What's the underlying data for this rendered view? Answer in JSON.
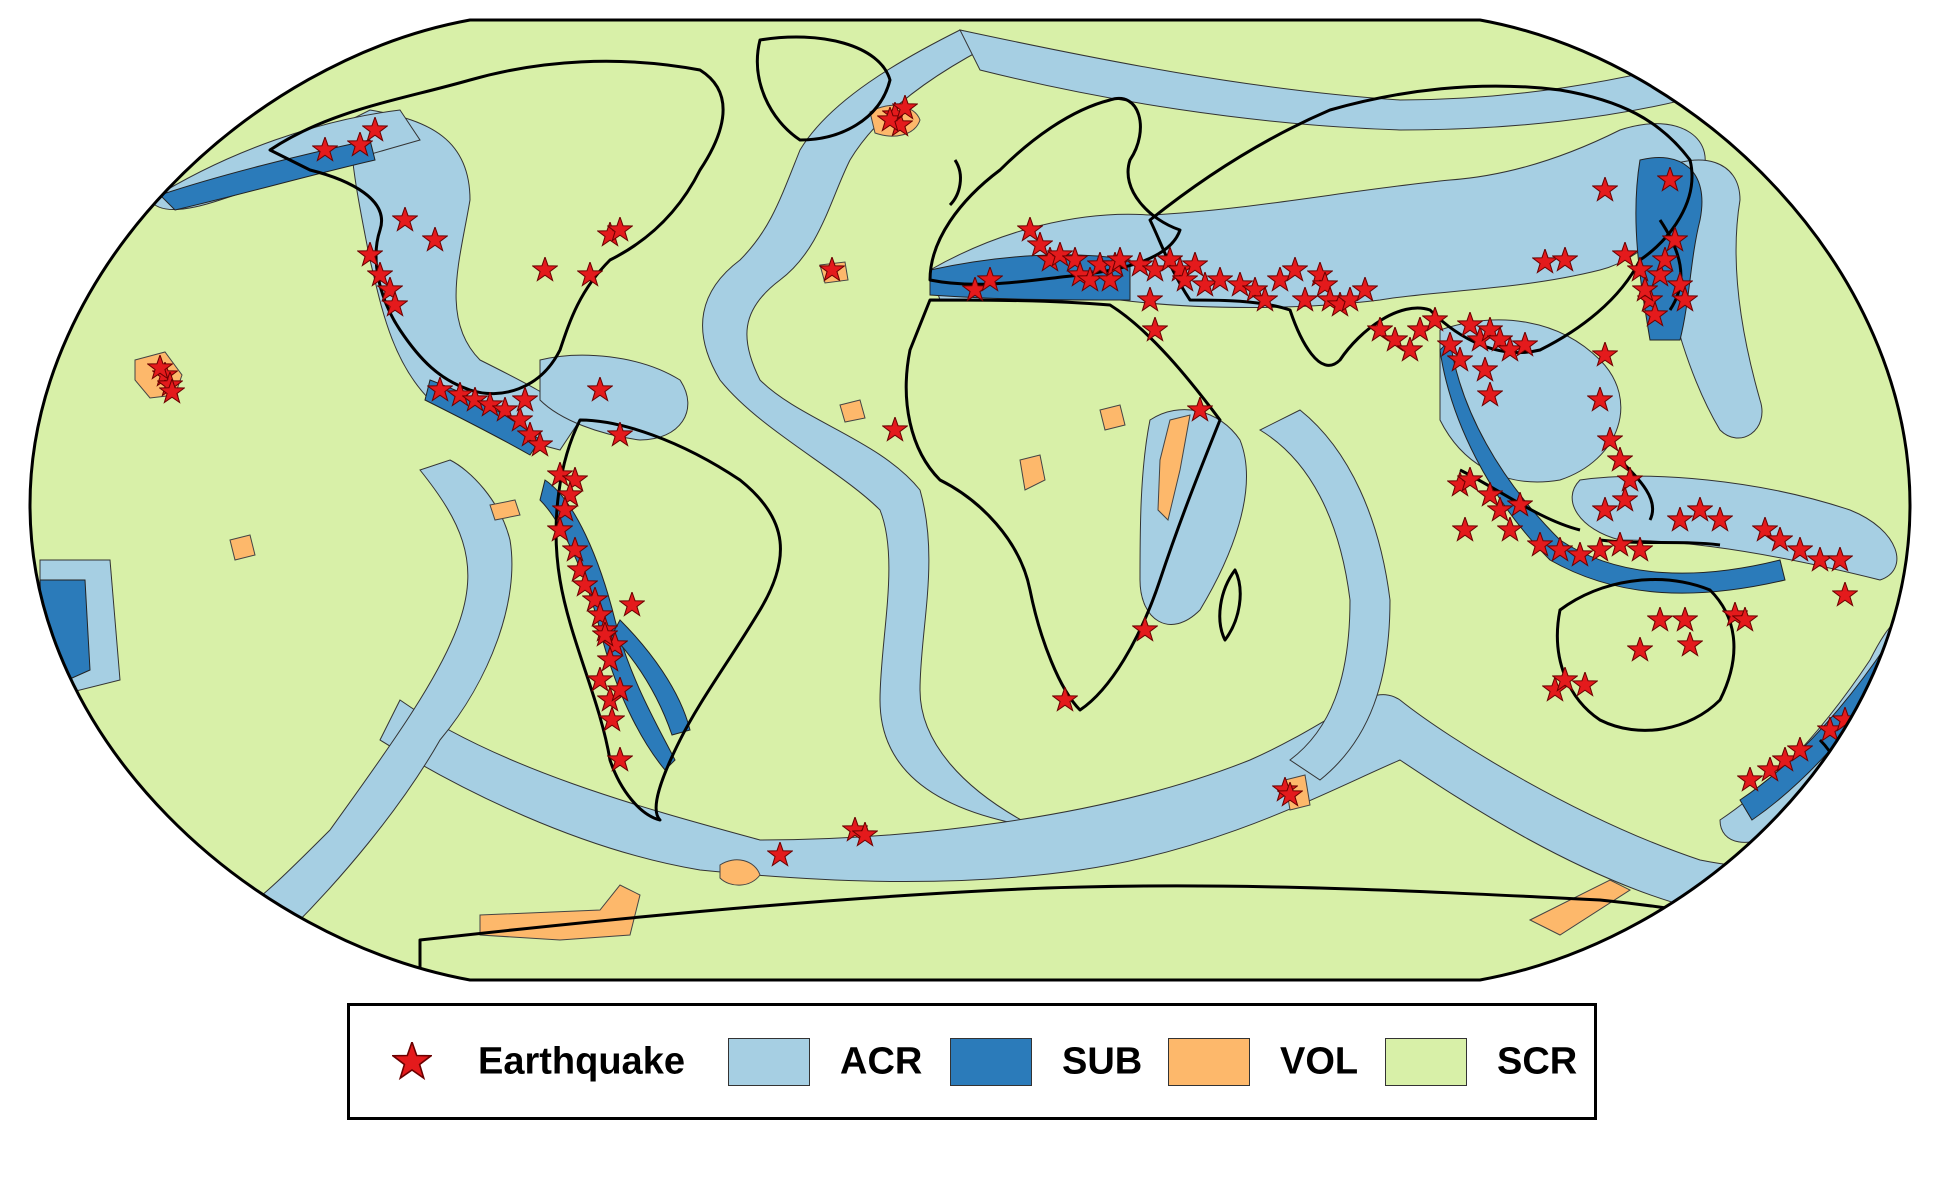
{
  "legend": {
    "earthquake_label": "Earthquake",
    "items": [
      {
        "label": "ACR",
        "color": "#a6cfe3"
      },
      {
        "label": "SUB",
        "color": "#2b7bba"
      },
      {
        "label": "VOL",
        "color": "#fdb86b"
      },
      {
        "label": "SCR",
        "color": "#d8f0a8"
      }
    ],
    "earthquake_color": "#e41a1c"
  },
  "colors": {
    "ocean_outline": "#000000",
    "coastline": "#000000"
  },
  "icons": {
    "earthquake_marker": "star"
  }
}
